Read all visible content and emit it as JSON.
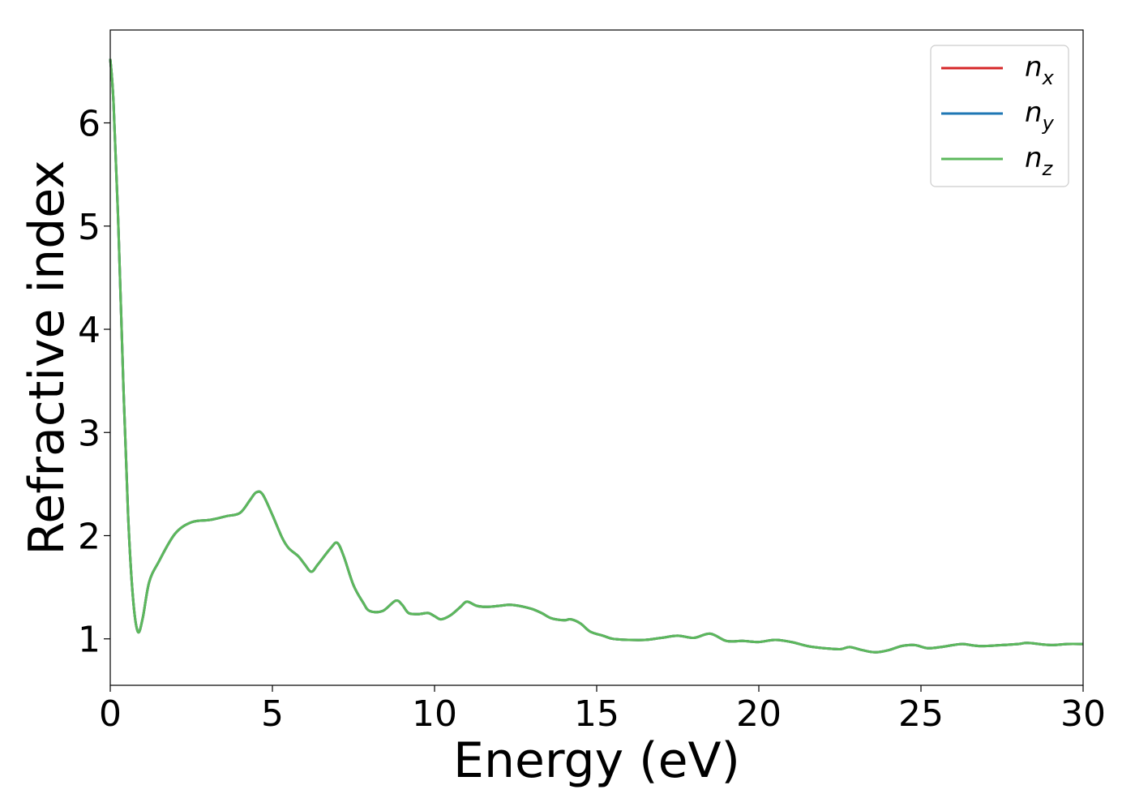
{
  "chart_data": {
    "type": "line",
    "xlabel": "Energy (eV)",
    "ylabel": "Refractive index",
    "xlim": [
      0,
      30
    ],
    "ylim": [
      0.55,
      6.9
    ],
    "xticks": [
      0,
      5,
      10,
      15,
      20,
      25,
      30
    ],
    "xtick_labels": [
      "0",
      "5",
      "10",
      "15",
      "20",
      "25",
      "30"
    ],
    "yticks": [
      1,
      2,
      3,
      4,
      5,
      6
    ],
    "ytick_labels": [
      "1",
      "2",
      "3",
      "4",
      "5",
      "6"
    ],
    "grid": false,
    "legend": {
      "placement": "top-right",
      "entries": [
        {
          "base": "n",
          "sub": "x",
          "color": "#d62728"
        },
        {
          "base": "n",
          "sub": "y",
          "color": "#1f77b4"
        },
        {
          "base": "n",
          "sub": "z",
          "color": "#5cb85c"
        }
      ]
    },
    "series": [
      {
        "name": "n_x",
        "color": "#d62728",
        "x": [],
        "y": []
      },
      {
        "name": "n_y",
        "color": "#1f77b4",
        "x": [],
        "y": []
      },
      {
        "name": "n_z",
        "color": "#5cb85c",
        "x": [],
        "y": []
      }
    ],
    "curve": {
      "x": [
        0,
        0.1,
        0.25,
        0.4,
        0.55,
        0.7,
        0.85,
        1.0,
        1.2,
        1.5,
        2.0,
        2.5,
        3.0,
        3.2,
        3.6,
        4.0,
        4.3,
        4.5,
        4.7,
        5.0,
        5.3,
        5.5,
        5.8,
        6.0,
        6.2,
        6.4,
        6.8,
        7.0,
        7.2,
        7.5,
        7.8,
        8.0,
        8.4,
        8.8,
        9.0,
        9.2,
        9.5,
        9.8,
        10.0,
        10.2,
        10.5,
        10.8,
        11.0,
        11.3,
        11.6,
        12.0,
        12.3,
        12.6,
        13.0,
        13.3,
        13.6,
        14.0,
        14.2,
        14.5,
        14.8,
        15.2,
        15.5,
        16.0,
        16.5,
        17.0,
        17.5,
        18.0,
        18.5,
        19.0,
        19.5,
        20.0,
        20.5,
        21.0,
        21.5,
        22.0,
        22.5,
        22.8,
        23.2,
        23.6,
        24.0,
        24.4,
        24.8,
        25.2,
        25.6,
        26.0,
        26.3,
        26.8,
        27.5,
        28.0,
        28.3,
        29.0,
        29.5,
        30.0
      ],
      "y": [
        6.62,
        6.2,
        5.0,
        3.5,
        2.2,
        1.4,
        1.07,
        1.2,
        1.55,
        1.75,
        2.02,
        2.13,
        2.15,
        2.16,
        2.19,
        2.22,
        2.34,
        2.42,
        2.4,
        2.2,
        1.98,
        1.88,
        1.8,
        1.72,
        1.65,
        1.72,
        1.88,
        1.93,
        1.8,
        1.52,
        1.35,
        1.27,
        1.27,
        1.37,
        1.33,
        1.25,
        1.24,
        1.25,
        1.22,
        1.19,
        1.23,
        1.31,
        1.36,
        1.32,
        1.31,
        1.32,
        1.33,
        1.32,
        1.29,
        1.25,
        1.2,
        1.18,
        1.19,
        1.15,
        1.07,
        1.03,
        1.0,
        0.99,
        0.99,
        1.01,
        1.03,
        1.01,
        1.05,
        0.98,
        0.98,
        0.97,
        0.99,
        0.97,
        0.93,
        0.91,
        0.9,
        0.92,
        0.89,
        0.87,
        0.89,
        0.93,
        0.94,
        0.91,
        0.92,
        0.94,
        0.95,
        0.93,
        0.94,
        0.95,
        0.96,
        0.94,
        0.95,
        0.95
      ]
    }
  }
}
